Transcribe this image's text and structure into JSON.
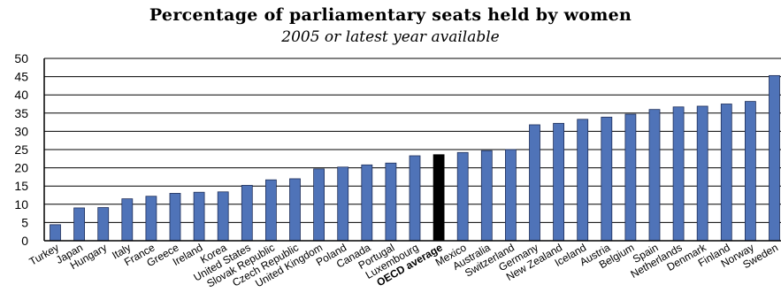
{
  "chart_data": {
    "type": "bar",
    "title": "Percentage of parliamentary seats held by women",
    "subtitle": "2005 or latest year available",
    "xlabel": "",
    "ylabel": "",
    "ylim": [
      0,
      50
    ],
    "yticks": [
      0,
      5,
      10,
      15,
      20,
      25,
      30,
      35,
      40,
      45,
      50
    ],
    "grid": true,
    "categories": [
      "Turkey",
      "Japan",
      "Hungary",
      "Italy",
      "France",
      "Greece",
      "Ireland",
      "Korea",
      "United States",
      "Slovak Republic",
      "Czech Republic",
      "United Kingdom",
      "Poland",
      "Canada",
      "Portugal",
      "Luxembourg",
      "OECD average",
      "Mexico",
      "Australia",
      "Switzerland",
      "Germany",
      "New Zealand",
      "Iceland",
      "Austria",
      "Belgium",
      "Spain",
      "Netherlands",
      "Denmark",
      "Finland",
      "Norway",
      "Sweden"
    ],
    "values": [
      4.4,
      9.0,
      9.1,
      11.5,
      12.2,
      13.0,
      13.3,
      13.4,
      15.2,
      16.7,
      17.0,
      19.7,
      20.2,
      20.8,
      21.3,
      23.3,
      23.6,
      24.2,
      24.7,
      25.0,
      31.8,
      32.2,
      33.3,
      33.9,
      34.7,
      36.0,
      36.7,
      36.9,
      37.5,
      38.2,
      45.3
    ],
    "highlight_category": "OECD average",
    "colors": {
      "bar": "#4f73b8",
      "bar_stroke": "#1f2f5a",
      "highlight": "#000000",
      "grid": "#000000",
      "axis": "#000000"
    }
  }
}
